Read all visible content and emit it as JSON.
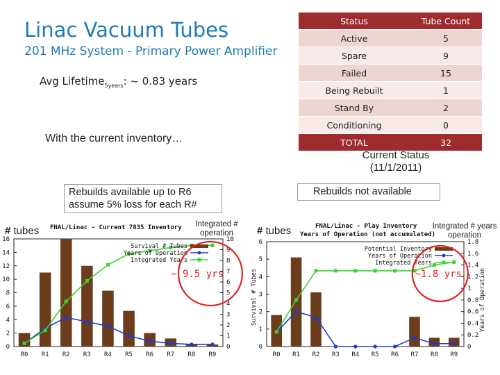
{
  "slide": {
    "title": "Linac Vacuum Tubes",
    "subtitle": "201 MHz System - Primary Power Amplifier",
    "lifetime_label": "Avg Lifetime",
    "lifetime_sub": "5years",
    "lifetime_value": ": ~ 0.83 years",
    "inventory_note": "With the current inventory…",
    "status_caption_1": "Current Status",
    "status_caption_2": "(11/1/2011)",
    "left_box_line1": "Rebuilds available up to R6",
    "left_box_line2": "assume 5% loss for each R#",
    "right_box": "Rebuilds not available",
    "tubes_hash": "#",
    "tubes_word": "tubes",
    "left_integ": "Integrated # operation",
    "right_integ": "Integrated # years operation"
  },
  "status_table": {
    "header": [
      "Status",
      "Tube Count"
    ],
    "rows": [
      {
        "status": "Active",
        "count": "5"
      },
      {
        "status": "Spare",
        "count": "9"
      },
      {
        "status": "Failed",
        "count": "15"
      },
      {
        "status": "Being Rebuilt",
        "count": "1"
      },
      {
        "status": "Stand By",
        "count": "2"
      },
      {
        "status": "Conditioning",
        "count": "0"
      }
    ],
    "total_label": "TOTAL",
    "total_count": "32"
  },
  "chart_data": [
    {
      "type": "bar",
      "title": "FNAL/Linac - Current 7835 Inventory",
      "annotation": "~ 9.5 yrs",
      "ylabel_left": "# tubes",
      "ylabel_right": "Integrated # operation",
      "categories": [
        "R0",
        "R1",
        "R2",
        "R3",
        "R4",
        "R5",
        "R6",
        "R7",
        "R8",
        "R9"
      ],
      "ylim": [
        0,
        16
      ],
      "yticks": [
        0,
        2,
        4,
        6,
        8,
        10,
        12,
        14,
        16
      ],
      "y2lim": [
        0,
        10
      ],
      "y2ticks": [
        0,
        1,
        2,
        3,
        4,
        5,
        6,
        7,
        8,
        9,
        10
      ],
      "bars": {
        "name": "Survival # Tubes",
        "values": [
          2,
          11,
          16,
          12,
          8.3,
          5.3,
          2,
          1.2,
          0.3,
          0.3
        ]
      },
      "series": [
        {
          "name": "Years of Operation",
          "axis": "right",
          "values": [
            0.3,
            1.7,
            2.7,
            2.3,
            1.9,
            1.0,
            0.5,
            0.3,
            0.2,
            0.2
          ]
        },
        {
          "name": "Integrated Years",
          "axis": "right",
          "values": [
            0.3,
            1.5,
            4.2,
            6.1,
            7.6,
            8.6,
            8.9,
            9.2,
            9.4,
            9.4
          ]
        }
      ],
      "legend": [
        "Survival # Tubes",
        "Years of Operation",
        "Integrated Years"
      ],
      "colors": {
        "bars": "#6b3d1c",
        "years": "#1d3acf",
        "integrated": "#3fd12f",
        "circle": "#e02020"
      }
    },
    {
      "type": "bar",
      "title": "FNAL/Linac - Play Inventory",
      "subtitle": "Years of Operation (not accumulated)",
      "annotation": "~1.8 yrs",
      "ylabel_left": "Survival # Tubes",
      "ylabel_right": "Years of Operation",
      "categories": [
        "R0",
        "R1",
        "R2",
        "R3",
        "R4",
        "R5",
        "R6",
        "R7",
        "R8",
        "R9"
      ],
      "ylim": [
        0,
        6
      ],
      "yticks": [
        0,
        1,
        2,
        3,
        4,
        5,
        6
      ],
      "y2lim": [
        0,
        1.8
      ],
      "y2ticks": [
        "0",
        "0.2",
        "0.4",
        "0.6",
        "0.8",
        "1",
        "1.2",
        "1.4",
        "1.6",
        "1.8"
      ],
      "bars": {
        "name": "Potential Inventory",
        "values": [
          1.8,
          5.1,
          3.1,
          0,
          0,
          0,
          0,
          1.7,
          0.5,
          0.5
        ]
      },
      "series": [
        {
          "name": "Years of Operation",
          "axis": "right",
          "values": [
            0.25,
            0.6,
            0.5,
            0,
            0,
            0,
            0,
            0.15,
            0.05,
            0.05
          ]
        },
        {
          "name": "Integrated Years",
          "axis": "right",
          "values": [
            0.25,
            0.8,
            1.3,
            1.3,
            1.3,
            1.3,
            1.3,
            1.3,
            1.4,
            1.45
          ]
        }
      ],
      "legend": [
        "Potential Inventory",
        "Years of Operation",
        "Integrated Years"
      ],
      "colors": {
        "bars": "#6b3d1c",
        "years": "#1d3acf",
        "integrated": "#3fd12f",
        "circle": "#e02020"
      }
    }
  ]
}
